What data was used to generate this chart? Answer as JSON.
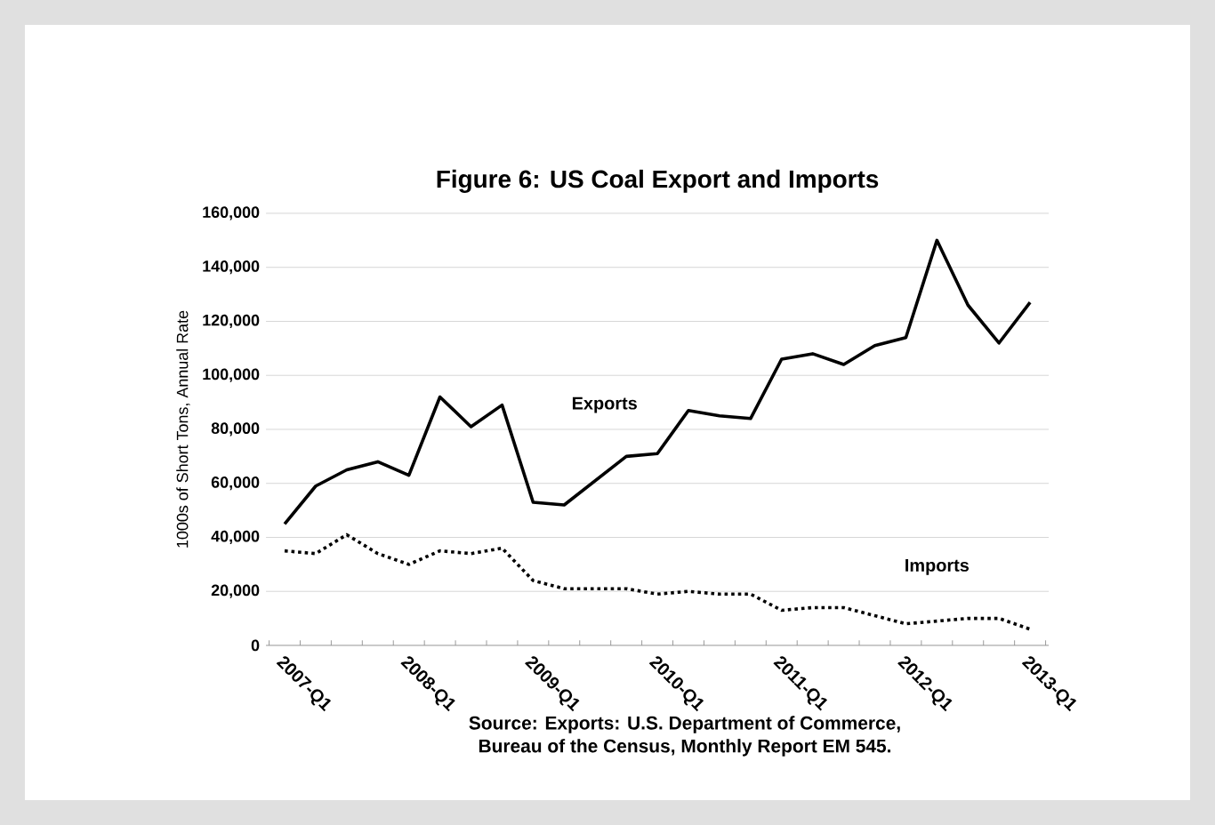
{
  "chart_data": {
    "type": "line",
    "title": "Figure 6:  US Coal Export and Imports",
    "ylabel": "1000s of Short Tons, Annual Rate",
    "categories": [
      "2007-Q1",
      null,
      null,
      null,
      "2008-Q1",
      null,
      null,
      null,
      "2009-Q1",
      null,
      null,
      null,
      "2010-Q1",
      null,
      null,
      null,
      "2011-Q1",
      null,
      null,
      null,
      "2012-Q1",
      null,
      null,
      null,
      "2013-Q1"
    ],
    "series": [
      {
        "name": "Exports",
        "color": "#000000",
        "line_style": "solid",
        "values": [
          45000,
          59000,
          65000,
          68000,
          63000,
          92000,
          81000,
          89000,
          53000,
          52000,
          61000,
          70000,
          71000,
          87000,
          85000,
          84000,
          106000,
          108000,
          104000,
          111000,
          114000,
          150000,
          126000,
          112000,
          127000
        ]
      },
      {
        "name": "Imports",
        "color": "#000000",
        "line_style": "dotted",
        "values": [
          35000,
          34000,
          41000,
          34000,
          30000,
          35000,
          34000,
          36000,
          24000,
          21000,
          21000,
          21000,
          19000,
          20000,
          19000,
          19000,
          13000,
          14000,
          14000,
          11000,
          8000,
          9000,
          10000,
          10000,
          6000
        ]
      }
    ],
    "ylim": [
      0,
      160000
    ],
    "yticks": [
      {
        "value": 0,
        "label": "0"
      },
      {
        "value": 20000,
        "label": "20,000"
      },
      {
        "value": 40000,
        "label": "40,000"
      },
      {
        "value": 60000,
        "label": "60,000"
      },
      {
        "value": 80000,
        "label": "80,000"
      },
      {
        "value": 100000,
        "label": "100,000"
      },
      {
        "value": 120000,
        "label": "120,000"
      },
      {
        "value": 140000,
        "label": "140,000"
      },
      {
        "value": 160000,
        "label": "160,000"
      }
    ],
    "grid": "y",
    "legend": false,
    "marker": "none",
    "annotations": [
      "Source: Exports: U.S. Department of Commerce,",
      "Bureau of the Census, Monthly Report EM 545."
    ]
  }
}
